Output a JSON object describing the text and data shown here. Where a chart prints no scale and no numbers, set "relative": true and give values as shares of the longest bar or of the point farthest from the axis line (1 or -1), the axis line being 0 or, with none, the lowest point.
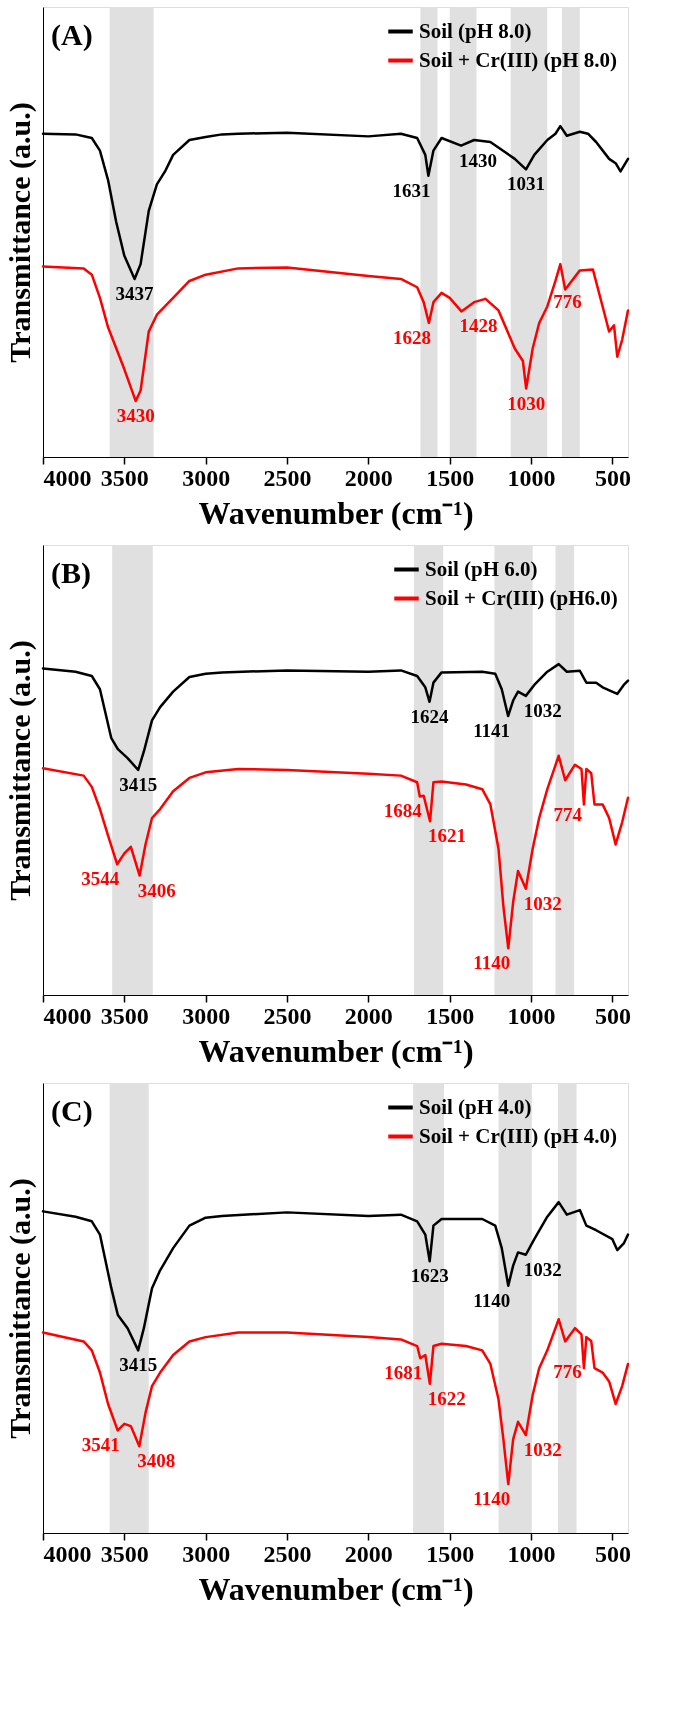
{
  "chart_data": [
    {
      "type": "line",
      "title": "(A)",
      "xlabel": "Wavenumber (cm⁻¹)",
      "ylabel": "Transmittance (a.u.)",
      "relative": true,
      "xlim": [
        4000,
        404
      ],
      "xticks": [
        4000,
        3500,
        3000,
        2500,
        2000,
        1500,
        1000,
        500
      ],
      "legend": "top right",
      "grid": false,
      "series": [
        {
          "name": "Soil (pH 8.0)",
          "color": "#000000",
          "x": [
            4000,
            3800,
            3700,
            3650,
            3600,
            3550,
            3500,
            3437,
            3400,
            3350,
            3300,
            3250,
            3200,
            3100,
            3000,
            2900,
            2800,
            2500,
            2000,
            1800,
            1700,
            1650,
            1631,
            1600,
            1550,
            1430,
            1350,
            1250,
            1100,
            1031,
            980,
            900,
            850,
            820,
            780,
            700,
            650,
            600,
            520,
            480,
            450,
            404
          ],
          "values": [
            0.977,
            0.975,
            0.964,
            0.926,
            0.837,
            0.71,
            0.608,
            0.538,
            0.583,
            0.744,
            0.824,
            0.863,
            0.913,
            0.958,
            0.967,
            0.975,
            0.977,
            0.98,
            0.969,
            0.977,
            0.964,
            0.913,
            0.85,
            0.926,
            0.964,
            0.941,
            0.958,
            0.952,
            0.901,
            0.869,
            0.913,
            0.958,
            0.977,
            1.0,
            0.971,
            0.983,
            0.977,
            0.952,
            0.901,
            0.888,
            0.863,
            0.901
          ]
        },
        {
          "name": "Soil + Cr(III) (pH 8.0)",
          "color": "#ff0000",
          "x": [
            4000,
            3750,
            3700,
            3650,
            3600,
            3500,
            3430,
            3400,
            3350,
            3300,
            3200,
            3100,
            3000,
            2800,
            2500,
            2000,
            1800,
            1700,
            1660,
            1628,
            1600,
            1550,
            1500,
            1428,
            1350,
            1280,
            1200,
            1100,
            1050,
            1030,
            990,
            950,
            900,
            850,
            820,
            790,
            700,
            620,
            560,
            520,
            490,
            470,
            440,
            404
          ],
          "values": [
            0.576,
            0.57,
            0.551,
            0.481,
            0.392,
            0.265,
            0.169,
            0.201,
            0.379,
            0.43,
            0.481,
            0.532,
            0.551,
            0.57,
            0.573,
            0.547,
            0.538,
            0.513,
            0.468,
            0.405,
            0.468,
            0.496,
            0.481,
            0.44,
            0.468,
            0.478,
            0.443,
            0.328,
            0.29,
            0.207,
            0.328,
            0.405,
            0.455,
            0.532,
            0.583,
            0.506,
            0.564,
            0.567,
            0.455,
            0.379,
            0.398,
            0.303,
            0.354,
            0.443
          ]
        }
      ],
      "bands": [
        {
          "axis": "x",
          "from": 3590,
          "to": 3320,
          "color": "#e0e0e0"
        },
        {
          "axis": "x",
          "from": 1680,
          "to": 1575,
          "color": "#e0e0e0"
        },
        {
          "axis": "x",
          "from": 1500,
          "to": 1335,
          "color": "#e0e0e0"
        },
        {
          "axis": "x",
          "from": 1125,
          "to": 900,
          "color": "#e0e0e0"
        },
        {
          "axis": "x",
          "from": 810,
          "to": 700,
          "color": "#e0e0e0"
        }
      ],
      "annotations": [
        {
          "text": "3437",
          "x": 3437,
          "y": 0.538
        },
        {
          "text": "1631",
          "x": 1631,
          "y": 0.85
        },
        {
          "text": "1430",
          "x": 1430,
          "y": 0.941
        },
        {
          "text": "1031",
          "x": 1031,
          "y": 0.869
        },
        {
          "text": "3430",
          "x": 3430,
          "y": 0.169
        },
        {
          "text": "1628",
          "x": 1628,
          "y": 0.405
        },
        {
          "text": "1428",
          "x": 1428,
          "y": 0.44
        },
        {
          "text": "1030",
          "x": 1030,
          "y": 0.207
        },
        {
          "text": "776",
          "x": 776,
          "y": 0.515
        }
      ]
    },
    {
      "type": "line",
      "title": "(B)",
      "xlabel": "Wavenumber (cm⁻¹)",
      "ylabel": "Transmittance (a.u.)",
      "relative": true,
      "xlim": [
        4000,
        404
      ],
      "xticks": [
        4000,
        3500,
        3000,
        2500,
        2000,
        1500,
        1000,
        500
      ],
      "legend": "top right",
      "grid": false,
      "series": [
        {
          "name": "Soil (pH 6.0)",
          "color": "#000000",
          "x": [
            4000,
            3800,
            3700,
            3650,
            3580,
            3540,
            3480,
            3415,
            3380,
            3330,
            3280,
            3200,
            3100,
            3000,
            2900,
            2500,
            2000,
            1800,
            1700,
            1650,
            1624,
            1600,
            1550,
            1300,
            1220,
            1180,
            1141,
            1110,
            1080,
            1032,
            980,
            900,
            830,
            780,
            700,
            660,
            600,
            560,
            470,
            430,
            404
          ],
          "values": [
            0.987,
            0.977,
            0.964,
            0.924,
            0.776,
            0.743,
            0.716,
            0.68,
            0.736,
            0.83,
            0.87,
            0.917,
            0.961,
            0.971,
            0.975,
            0.981,
            0.977,
            0.981,
            0.964,
            0.93,
            0.886,
            0.944,
            0.975,
            0.977,
            0.971,
            0.924,
            0.843,
            0.89,
            0.917,
            0.904,
            0.937,
            0.977,
            1.0,
            0.977,
            0.98,
            0.944,
            0.944,
            0.93,
            0.91,
            0.937,
            0.95
          ]
        },
        {
          "name": "Soil + Cr(III) (pH6.0)",
          "color": "#ff0000",
          "x": [
            4000,
            3750,
            3700,
            3650,
            3600,
            3544,
            3500,
            3460,
            3406,
            3370,
            3330,
            3280,
            3200,
            3100,
            3000,
            2800,
            2500,
            2000,
            1800,
            1700,
            1684,
            1660,
            1621,
            1600,
            1550,
            1400,
            1300,
            1250,
            1200,
            1170,
            1140,
            1110,
            1080,
            1032,
            990,
            950,
            900,
            830,
            790,
            730,
            690,
            675,
            660,
            630,
            610,
            560,
            520,
            480,
            440,
            404
          ],
          "values": [
            0.685,
            0.663,
            0.629,
            0.562,
            0.482,
            0.395,
            0.428,
            0.448,
            0.361,
            0.455,
            0.535,
            0.562,
            0.616,
            0.656,
            0.673,
            0.683,
            0.68,
            0.669,
            0.663,
            0.643,
            0.6,
            0.602,
            0.525,
            0.643,
            0.645,
            0.636,
            0.622,
            0.576,
            0.442,
            0.268,
            0.141,
            0.281,
            0.375,
            0.321,
            0.442,
            0.535,
            0.622,
            0.723,
            0.649,
            0.696,
            0.683,
            0.576,
            0.683,
            0.67,
            0.576,
            0.576,
            0.535,
            0.455,
            0.522,
            0.596
          ]
        }
      ],
      "bands": [
        {
          "axis": "x",
          "from": 3575,
          "to": 3325,
          "color": "#e0e0e0"
        },
        {
          "axis": "x",
          "from": 1720,
          "to": 1540,
          "color": "#e0e0e0"
        },
        {
          "axis": "x",
          "from": 1225,
          "to": 990,
          "color": "#e0e0e0"
        },
        {
          "axis": "x",
          "from": 850,
          "to": 735,
          "color": "#e0e0e0"
        }
      ],
      "annotations": [
        {
          "text": "3415",
          "x": 3415,
          "y": 0.68
        },
        {
          "text": "1624",
          "x": 1624,
          "y": 0.886
        },
        {
          "text": "1141",
          "x": 1141,
          "y": 0.843
        },
        {
          "text": "1032",
          "x": 1032,
          "y": 0.904
        },
        {
          "text": "3544",
          "x": 3544,
          "y": 0.395
        },
        {
          "text": "3406",
          "x": 3406,
          "y": 0.361
        },
        {
          "text": "1684",
          "x": 1684,
          "y": 0.6
        },
        {
          "text": "1621",
          "x": 1621,
          "y": 0.525
        },
        {
          "text": "1140",
          "x": 1140,
          "y": 0.141
        },
        {
          "text": "1032",
          "x": 1032,
          "y": 0.321
        },
        {
          "text": "774",
          "x": 774,
          "y": 0.662
        }
      ]
    },
    {
      "type": "line",
      "title": "(C)",
      "xlabel": "Wavenumber (cm⁻¹)",
      "ylabel": "Transmittance (a.u.)",
      "relative": true,
      "xlim": [
        4000,
        404
      ],
      "xticks": [
        4000,
        3500,
        3000,
        2500,
        2000,
        1500,
        1000,
        500
      ],
      "legend": "top right",
      "grid": false,
      "series": [
        {
          "name": "Soil (pH 4.0)",
          "color": "#000000",
          "x": [
            4000,
            3800,
            3700,
            3650,
            3580,
            3540,
            3480,
            3415,
            3380,
            3330,
            3280,
            3200,
            3100,
            3000,
            2900,
            2500,
            2000,
            1800,
            1700,
            1650,
            1623,
            1600,
            1550,
            1300,
            1220,
            1180,
            1140,
            1110,
            1080,
            1032,
            980,
            900,
            830,
            780,
            700,
            660,
            600,
            500,
            470,
            430,
            404
          ],
          "values": [
            0.972,
            0.956,
            0.942,
            0.902,
            0.74,
            0.659,
            0.619,
            0.552,
            0.619,
            0.74,
            0.794,
            0.861,
            0.929,
            0.953,
            0.958,
            0.969,
            0.958,
            0.962,
            0.942,
            0.902,
            0.821,
            0.929,
            0.949,
            0.949,
            0.929,
            0.861,
            0.747,
            0.808,
            0.848,
            0.841,
            0.888,
            0.956,
            1.0,
            0.962,
            0.976,
            0.929,
            0.915,
            0.888,
            0.855,
            0.875,
            0.902
          ]
        },
        {
          "name": "Soil + Cr(III) (pH 4.0)",
          "color": "#ff0000",
          "x": [
            4000,
            3750,
            3700,
            3650,
            3600,
            3541,
            3500,
            3460,
            3408,
            3370,
            3330,
            3280,
            3200,
            3100,
            3000,
            2800,
            2500,
            2000,
            1800,
            1700,
            1681,
            1650,
            1622,
            1600,
            1550,
            1400,
            1300,
            1250,
            1200,
            1170,
            1140,
            1110,
            1080,
            1032,
            990,
            950,
            900,
            830,
            790,
            730,
            690,
            675,
            660,
            630,
            610,
            560,
            520,
            480,
            440,
            404
          ],
          "values": [
            0.606,
            0.579,
            0.552,
            0.485,
            0.39,
            0.31,
            0.33,
            0.323,
            0.262,
            0.363,
            0.444,
            0.485,
            0.538,
            0.579,
            0.592,
            0.606,
            0.606,
            0.592,
            0.585,
            0.565,
            0.528,
            0.538,
            0.451,
            0.565,
            0.572,
            0.565,
            0.552,
            0.511,
            0.404,
            0.283,
            0.148,
            0.283,
            0.336,
            0.296,
            0.417,
            0.498,
            0.552,
            0.646,
            0.579,
            0.619,
            0.6,
            0.498,
            0.592,
            0.58,
            0.498,
            0.485,
            0.458,
            0.39,
            0.444,
            0.511
          ]
        }
      ],
      "bands": [
        {
          "axis": "x",
          "from": 3590,
          "to": 3350,
          "color": "#e0e0e0"
        },
        {
          "axis": "x",
          "from": 1725,
          "to": 1535,
          "color": "#e0e0e0"
        },
        {
          "axis": "x",
          "from": 1200,
          "to": 995,
          "color": "#e0e0e0"
        },
        {
          "axis": "x",
          "from": 835,
          "to": 720,
          "color": "#e0e0e0"
        }
      ],
      "annotations": [
        {
          "text": "3415",
          "x": 3415,
          "y": 0.552
        },
        {
          "text": "1623",
          "x": 1623,
          "y": 0.821
        },
        {
          "text": "1140",
          "x": 1140,
          "y": 0.747
        },
        {
          "text": "1032",
          "x": 1032,
          "y": 0.841
        },
        {
          "text": "3541",
          "x": 3541,
          "y": 0.31
        },
        {
          "text": "3408",
          "x": 3408,
          "y": 0.262
        },
        {
          "text": "1681",
          "x": 1681,
          "y": 0.528
        },
        {
          "text": "1622",
          "x": 1622,
          "y": 0.451
        },
        {
          "text": "1140",
          "x": 1140,
          "y": 0.148
        },
        {
          "text": "1032",
          "x": 1032,
          "y": 0.296
        },
        {
          "text": "776",
          "x": 776,
          "y": 0.586
        }
      ]
    }
  ]
}
